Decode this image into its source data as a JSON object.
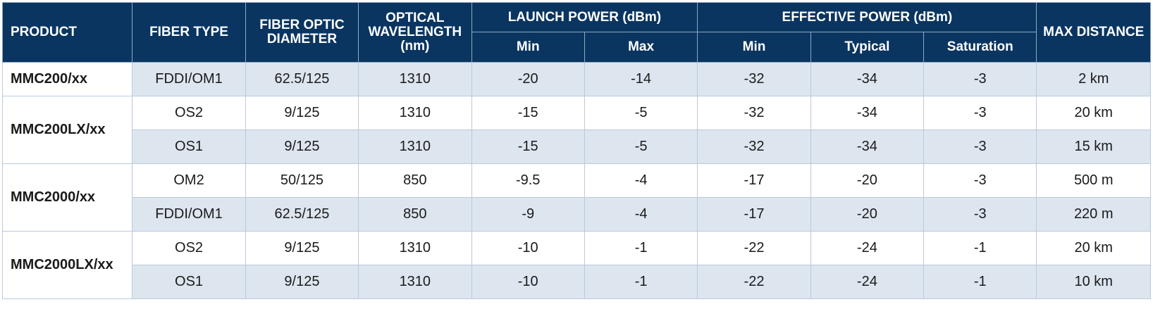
{
  "headers": {
    "product": "PRODUCT",
    "fiber_type": "FIBER TYPE",
    "fiber_optic_diameter": "FIBER OPTIC DIAMETER",
    "optical_wavelength": "OPTICAL WAVELENGTH (nm)",
    "launch_power": "LAUNCH POWER (dBm)",
    "launch_min": "Min",
    "launch_max": "Max",
    "effective_power": "EFFECTIVE POWER (dBm)",
    "effective_min": "Min",
    "effective_typical": "Typical",
    "effective_saturation": "Saturation",
    "max_distance": "MAX DISTANCE"
  },
  "products": [
    {
      "name": "MMC200/xx",
      "rows": [
        {
          "fiber_type": "FDDI/OM1",
          "diameter": "62.5/125",
          "wavelength": "1310",
          "launch_min": "-20",
          "launch_max": "-14",
          "eff_min": "-32",
          "eff_typical": "-34",
          "eff_saturation": "-3",
          "max_distance": "2 km"
        }
      ]
    },
    {
      "name": "MMC200LX/xx",
      "rows": [
        {
          "fiber_type": "OS2",
          "diameter": "9/125",
          "wavelength": "1310",
          "launch_min": "-15",
          "launch_max": "-5",
          "eff_min": "-32",
          "eff_typical": "-34",
          "eff_saturation": "-3",
          "max_distance": "20 km"
        },
        {
          "fiber_type": "OS1",
          "diameter": "9/125",
          "wavelength": "1310",
          "launch_min": "-15",
          "launch_max": "-5",
          "eff_min": "-32",
          "eff_typical": "-34",
          "eff_saturation": "-3",
          "max_distance": "15 km"
        }
      ]
    },
    {
      "name": "MMC2000/xx",
      "rows": [
        {
          "fiber_type": "OM2",
          "diameter": "50/125",
          "wavelength": "850",
          "launch_min": "-9.5",
          "launch_max": "-4",
          "eff_min": "-17",
          "eff_typical": "-20",
          "eff_saturation": "-3",
          "max_distance": "500 m"
        },
        {
          "fiber_type": "FDDI/OM1",
          "diameter": "62.5/125",
          "wavelength": "850",
          "launch_min": "-9",
          "launch_max": "-4",
          "eff_min": "-17",
          "eff_typical": "-20",
          "eff_saturation": "-3",
          "max_distance": "220 m"
        }
      ]
    },
    {
      "name": "MMC2000LX/xx",
      "rows": [
        {
          "fiber_type": "OS2",
          "diameter": "9/125",
          "wavelength": "1310",
          "launch_min": "-10",
          "launch_max": "-1",
          "eff_min": "-22",
          "eff_typical": "-24",
          "eff_saturation": "-1",
          "max_distance": "20 km"
        },
        {
          "fiber_type": "OS1",
          "diameter": "9/125",
          "wavelength": "1310",
          "launch_min": "-10",
          "launch_max": "-1",
          "eff_min": "-22",
          "eff_typical": "-24",
          "eff_saturation": "-1",
          "max_distance": "10 km"
        }
      ]
    }
  ]
}
